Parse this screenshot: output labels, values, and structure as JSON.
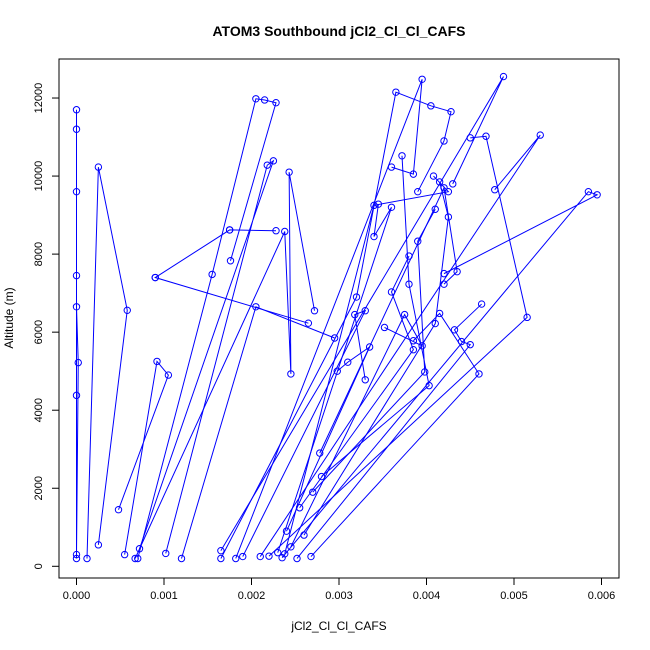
{
  "chart_data": {
    "type": "line",
    "title": "ATOM3 Southbound jCl2_Cl_Cl_CAFS",
    "xlabel": "jCl2_Cl_Cl_CAFS",
    "ylabel": "Altitude (m)",
    "xlim": [
      -0.0002,
      0.0062
    ],
    "ylim": [
      -300,
      13000
    ],
    "xticks": [
      0,
      0.001,
      0.002,
      0.003,
      0.004,
      0.005,
      0.006
    ],
    "xtick_labels": [
      "0.000",
      "0.001",
      "0.002",
      "0.003",
      "0.004",
      "0.005",
      "0.006"
    ],
    "yticks": [
      0,
      2000,
      4000,
      6000,
      8000,
      10000,
      12000
    ],
    "ytick_labels": [
      "0",
      "2000",
      "4000",
      "6000",
      "8000",
      "10000",
      "12000"
    ],
    "color": "#0000ff",
    "grid": false,
    "series": [
      {
        "values": [
          [
            0.0,
            200
          ],
          [
            0.0,
            4380
          ],
          [
            0.0,
            7450
          ],
          [
            0.0,
            9600
          ],
          [
            0.0,
            11200
          ],
          [
            0.0,
            11700
          ],
          [
            0.0,
            6650
          ],
          [
            2e-05,
            5220
          ],
          [
            0.0,
            300
          ]
        ]
      },
      {
        "values": [
          [
            0.00012,
            200
          ],
          [
            0.00025,
            10230
          ],
          [
            0.00058,
            6560
          ],
          [
            0.00025,
            550
          ]
        ]
      },
      {
        "values": [
          [
            0.00055,
            300
          ],
          [
            0.00092,
            5250
          ],
          [
            0.00105,
            4900
          ],
          [
            0.00048,
            1450
          ]
        ]
      },
      {
        "values": [
          [
            0.0007,
            200
          ],
          [
            0.00155,
            7480
          ],
          [
            0.00205,
            11980
          ],
          [
            0.00215,
            11950
          ],
          [
            0.00228,
            11880
          ],
          [
            0.00176,
            7830
          ]
        ]
      },
      {
        "values": [
          [
            0.00072,
            450
          ],
          [
            0.00225,
            10390
          ],
          [
            0.00218,
            10280
          ],
          [
            0.00102,
            330
          ]
        ]
      },
      {
        "values": [
          [
            0.0009,
            7400
          ],
          [
            0.00175,
            8620
          ],
          [
            0.00228,
            8600
          ],
          [
            0.00175,
            8620
          ],
          [
            0.0009,
            7400
          ],
          [
            0.00265,
            6230
          ]
        ]
      },
      {
        "values": [
          [
            0.00067,
            200
          ],
          [
            0.00238,
            8580
          ],
          [
            0.00245,
            4930
          ],
          [
            0.00243,
            10100
          ],
          [
            0.00272,
            6550
          ]
        ]
      },
      {
        "values": [
          [
            0.0012,
            200
          ],
          [
            0.00205,
            6650
          ],
          [
            0.00295,
            5850
          ]
        ]
      },
      {
        "values": [
          [
            0.00165,
            200
          ],
          [
            0.0032,
            6900
          ],
          [
            0.00365,
            12150
          ],
          [
            0.00405,
            11800
          ],
          [
            0.00428,
            11650
          ],
          [
            0.0042,
            10900
          ],
          [
            0.0039,
            9600
          ]
        ]
      },
      {
        "values": [
          [
            0.00182,
            200
          ],
          [
            0.00395,
            12480
          ],
          [
            0.00385,
            10050
          ],
          [
            0.0036,
            10230
          ]
        ]
      },
      {
        "values": [
          [
            0.00165,
            400
          ],
          [
            0.00488,
            12550
          ],
          [
            0.0043,
            9800
          ]
        ]
      },
      {
        "values": [
          [
            0.0021,
            250
          ],
          [
            0.0053,
            11050
          ],
          [
            0.00478,
            9650
          ]
        ]
      },
      {
        "values": [
          [
            0.00235,
            220
          ],
          [
            0.00585,
            9600
          ],
          [
            0.00595,
            9520
          ],
          [
            0.0042,
            7500
          ]
        ]
      },
      {
        "values": [
          [
            0.0022,
            260
          ],
          [
            0.00515,
            6380
          ],
          [
            0.00468,
            11020
          ],
          [
            0.0045,
            10980
          ]
        ]
      },
      {
        "values": [
          [
            0.00252,
            200
          ],
          [
            0.0045,
            5680
          ],
          [
            0.0044,
            5760
          ],
          [
            0.00432,
            6060
          ],
          [
            0.00463,
            6720
          ]
        ]
      },
      {
        "values": [
          [
            0.00268,
            250
          ],
          [
            0.0046,
            4930
          ],
          [
            0.00415,
            6480
          ],
          [
            0.00385,
            5780
          ]
        ]
      },
      {
        "values": [
          [
            0.0028,
            2300
          ],
          [
            0.00403,
            4630
          ],
          [
            0.0038,
            7230
          ],
          [
            0.00372,
            10520
          ]
        ]
      },
      {
        "values": [
          [
            0.0023,
            350
          ],
          [
            0.0036,
            9200
          ],
          [
            0.0034,
            8450
          ],
          [
            0.00345,
            9280
          ]
        ]
      },
      {
        "values": [
          [
            0.00245,
            500
          ],
          [
            0.00375,
            6450
          ],
          [
            0.00395,
            5650
          ],
          [
            0.00352,
            6120
          ]
        ]
      },
      {
        "values": [
          [
            0.0026,
            800
          ],
          [
            0.0041,
            6220
          ],
          [
            0.00425,
            8950
          ],
          [
            0.00415,
            9850
          ]
        ]
      },
      {
        "values": [
          [
            0.0024,
            900
          ],
          [
            0.00335,
            5620
          ],
          [
            0.0031,
            5230
          ],
          [
            0.00298,
            5000
          ]
        ]
      },
      {
        "values": [
          [
            0.00255,
            1500
          ],
          [
            0.00385,
            5550
          ],
          [
            0.0036,
            7030
          ],
          [
            0.0038,
            7950
          ]
        ]
      },
      {
        "values": [
          [
            0.0027,
            1900
          ],
          [
            0.00398,
            4980
          ],
          [
            0.0039,
            8330
          ],
          [
            0.0041,
            9150
          ]
        ]
      },
      {
        "values": [
          [
            0.00238,
            320
          ],
          [
            0.0034,
            9250
          ],
          [
            0.00425,
            9600
          ],
          [
            0.00408,
            10000
          ]
        ]
      },
      {
        "values": [
          [
            0.0019,
            250
          ],
          [
            0.0033,
            6550
          ],
          [
            0.00318,
            6450
          ],
          [
            0.0033,
            4780
          ]
        ]
      },
      {
        "values": [
          [
            0.00278,
            2900
          ],
          [
            0.0042,
            9700
          ],
          [
            0.00435,
            7550
          ],
          [
            0.0042,
            7230
          ]
        ]
      }
    ]
  }
}
